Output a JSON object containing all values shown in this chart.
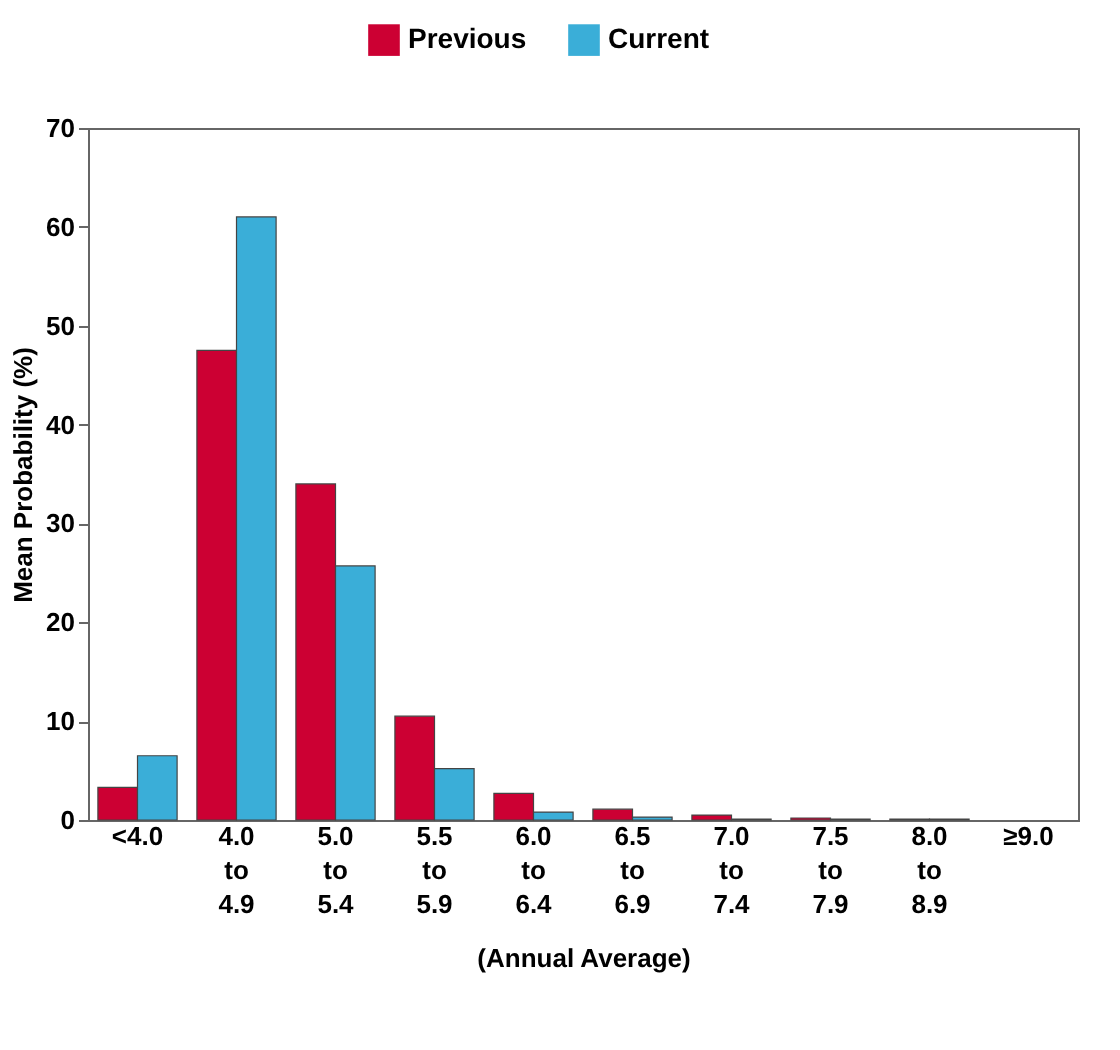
{
  "chart_data": {
    "type": "bar",
    "xlabel": "(Annual Average)",
    "ylabel": "Mean Probability (%)",
    "categories": [
      "<4.0",
      "4.0 to 4.9",
      "5.0 to 5.4",
      "5.5 to 5.9",
      "6.0 to 6.4",
      "6.5 to 6.9",
      "7.0 to 7.4",
      "7.5 to 7.9",
      "8.0 to 8.9",
      "≥9.0"
    ],
    "series": [
      {
        "name": "Previous",
        "color": "#cc0033",
        "values": [
          3.3,
          47.5,
          34,
          10.5,
          2.7,
          1.1,
          0.5,
          0.2,
          0.1,
          null
        ]
      },
      {
        "name": "Current",
        "color": "#3aaed8",
        "values": [
          6.5,
          61,
          25.7,
          5.2,
          0.8,
          0.3,
          0.1,
          0.1,
          0.1,
          null
        ]
      }
    ],
    "ylim": [
      0,
      70
    ],
    "yticks": [
      0,
      10,
      20,
      30,
      40,
      50,
      60,
      70
    ],
    "grid": false,
    "legend": "top"
  }
}
